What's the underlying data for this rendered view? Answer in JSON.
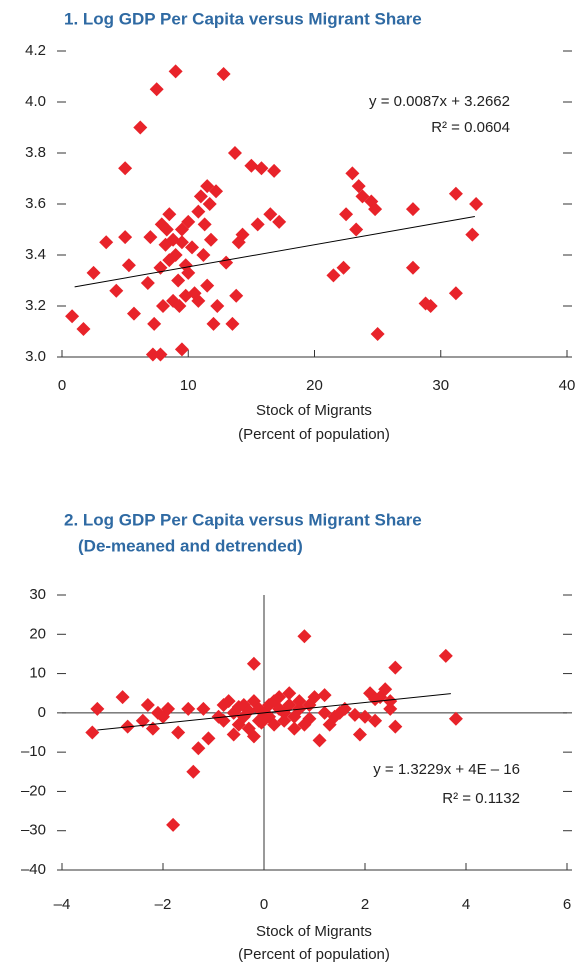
{
  "chart_data": [
    {
      "type": "scatter",
      "title": "1. Log GDP Per Capita versus Migrant Share",
      "xlabel": [
        "Stock of Migrants",
        "(Percent of population)"
      ],
      "xlim": [
        0,
        40
      ],
      "xticks": [
        0,
        10,
        20,
        30,
        40
      ],
      "ylim": [
        3,
        4.2
      ],
      "yticks": [
        {
          "value": 3,
          "label": "3.0"
        },
        3.2,
        3.4,
        3.6,
        3.8,
        {
          "value": 4,
          "label": "4.0"
        },
        4.2
      ],
      "color": "#e8232a",
      "zero_lines": false,
      "x": [
        0.8,
        1.7,
        2.5,
        3.5,
        4.3,
        5.0,
        5.0,
        5.3,
        5.7,
        6.2,
        6.8,
        7.0,
        7.3,
        7.5,
        7.2,
        7.8,
        7.8,
        7.9,
        8.0,
        8.2,
        8.3,
        8.5,
        8.5,
        8.8,
        8.8,
        9.0,
        9.0,
        9.2,
        9.3,
        9.5,
        9.5,
        9.5,
        9.8,
        9.8,
        10.0,
        10.0,
        10.3,
        10.5,
        10.8,
        10.8,
        11.0,
        11.2,
        11.3,
        11.5,
        11.5,
        11.7,
        11.8,
        12.0,
        12.2,
        12.3,
        12.8,
        13.0,
        13.5,
        13.7,
        13.8,
        14.0,
        14.3,
        15.0,
        15.5,
        15.8,
        16.5,
        16.8,
        17.2,
        21.5,
        22.3,
        22.5,
        23.0,
        23.3,
        23.5,
        23.8,
        24.5,
        24.8,
        25.0,
        27.8,
        27.8,
        28.8,
        29.2,
        31.2,
        31.2,
        32.5,
        32.8
      ],
      "values": [
        3.16,
        3.11,
        3.33,
        3.45,
        3.26,
        3.47,
        3.74,
        3.36,
        3.17,
        3.9,
        3.29,
        3.47,
        3.13,
        4.05,
        3.01,
        3.01,
        3.35,
        3.52,
        3.2,
        3.44,
        3.5,
        3.56,
        3.38,
        3.22,
        3.46,
        4.12,
        3.4,
        3.3,
        3.2,
        3.5,
        3.03,
        3.45,
        3.36,
        3.24,
        3.53,
        3.33,
        3.43,
        3.25,
        3.57,
        3.22,
        3.63,
        3.4,
        3.52,
        3.67,
        3.28,
        3.6,
        3.46,
        3.13,
        3.65,
        3.2,
        4.11,
        3.37,
        3.13,
        3.8,
        3.24,
        3.45,
        3.48,
        3.75,
        3.52,
        3.74,
        3.56,
        3.73,
        3.53,
        3.32,
        3.35,
        3.56,
        3.72,
        3.5,
        3.67,
        3.63,
        3.61,
        3.58,
        3.09,
        3.58,
        3.35,
        3.21,
        3.2,
        3.64,
        3.25,
        3.48,
        3.6
      ],
      "trendline": {
        "x": [
          1,
          32.7
        ],
        "values": [
          3.275,
          3.551
        ],
        "color": "#000000"
      },
      "annotations": [
        "y = 0.0087x + 3.2662",
        "R² = 0.0604"
      ]
    },
    {
      "type": "scatter",
      "title": "2. Log GDP Per Capita versus Migrant Share",
      "subtitle": "(De-meaned and detrended)",
      "xlabel": [
        "Stock of Migrants",
        "(Percent of population)"
      ],
      "xlim": [
        -4,
        6
      ],
      "xticks": [
        {
          "value": -4,
          "label": "–4"
        },
        {
          "value": -2,
          "label": "–2"
        },
        0,
        2,
        4,
        6
      ],
      "ylim": [
        -40,
        30
      ],
      "yticks": [
        {
          "value": -40,
          "label": "–40"
        },
        {
          "value": -30,
          "label": "–30"
        },
        {
          "value": -20,
          "label": "–20"
        },
        {
          "value": -10,
          "label": "–10"
        },
        0,
        10,
        20,
        30
      ],
      "color": "#e8232a",
      "zero_lines": true,
      "x": [
        -3.4,
        -3.3,
        -2.8,
        -2.7,
        -2.4,
        -2.3,
        -2.2,
        -2.1,
        -2.0,
        -1.9,
        -1.8,
        -1.7,
        -1.5,
        -1.4,
        -1.3,
        -1.2,
        -1.1,
        -0.8,
        -0.8,
        -0.7,
        -0.6,
        -0.6,
        -0.5,
        -0.5,
        -0.4,
        -0.4,
        -0.3,
        -0.3,
        -0.2,
        -0.2,
        -0.2,
        -0.1,
        -0.1,
        0,
        0.1,
        0.1,
        0.2,
        0.2,
        0.3,
        0.3,
        0.4,
        0.4,
        0.5,
        0.5,
        0.6,
        0.6,
        0.7,
        0.7,
        0.8,
        0.8,
        0.9,
        0.9,
        1.0,
        1.1,
        1.2,
        1.2,
        1.3,
        1.4,
        1.5,
        1.6,
        1.8,
        1.9,
        2.0,
        2.1,
        2.2,
        2.3,
        2.4,
        2.5,
        2.5,
        2.6,
        2.6,
        3.6,
        3.8,
        2.2,
        -0.9,
        -0.05
      ],
      "values": [
        -5,
        1,
        4,
        -3.5,
        -2,
        2,
        -4,
        0,
        -1,
        1,
        -28.5,
        -5,
        1,
        -15,
        -9,
        1,
        -6.5,
        2,
        -2,
        3,
        -5.5,
        0,
        1.5,
        -3,
        2,
        -1,
        -4,
        0.5,
        12.5,
        -6,
        3,
        -2,
        1,
        0,
        2,
        -1,
        3,
        -3,
        1,
        4,
        0,
        -2,
        5,
        2,
        -4,
        -1,
        1,
        3,
        19.5,
        -3,
        2,
        -1.5,
        4,
        -7,
        4.5,
        0,
        -3,
        -1,
        0,
        1,
        -0.5,
        -5.5,
        -1,
        5,
        -2,
        4,
        6,
        1,
        3,
        11.5,
        -3.5,
        14.5,
        -1.5,
        3.5,
        -1,
        -2.5
      ],
      "trendline": {
        "x": [
          -3.3,
          3.7
        ],
        "values": [
          -4.37,
          4.89
        ],
        "color": "#000000"
      },
      "annotations": [
        "y = 1.3229x + 4E – 16",
        "R² = 0.1132"
      ]
    }
  ]
}
